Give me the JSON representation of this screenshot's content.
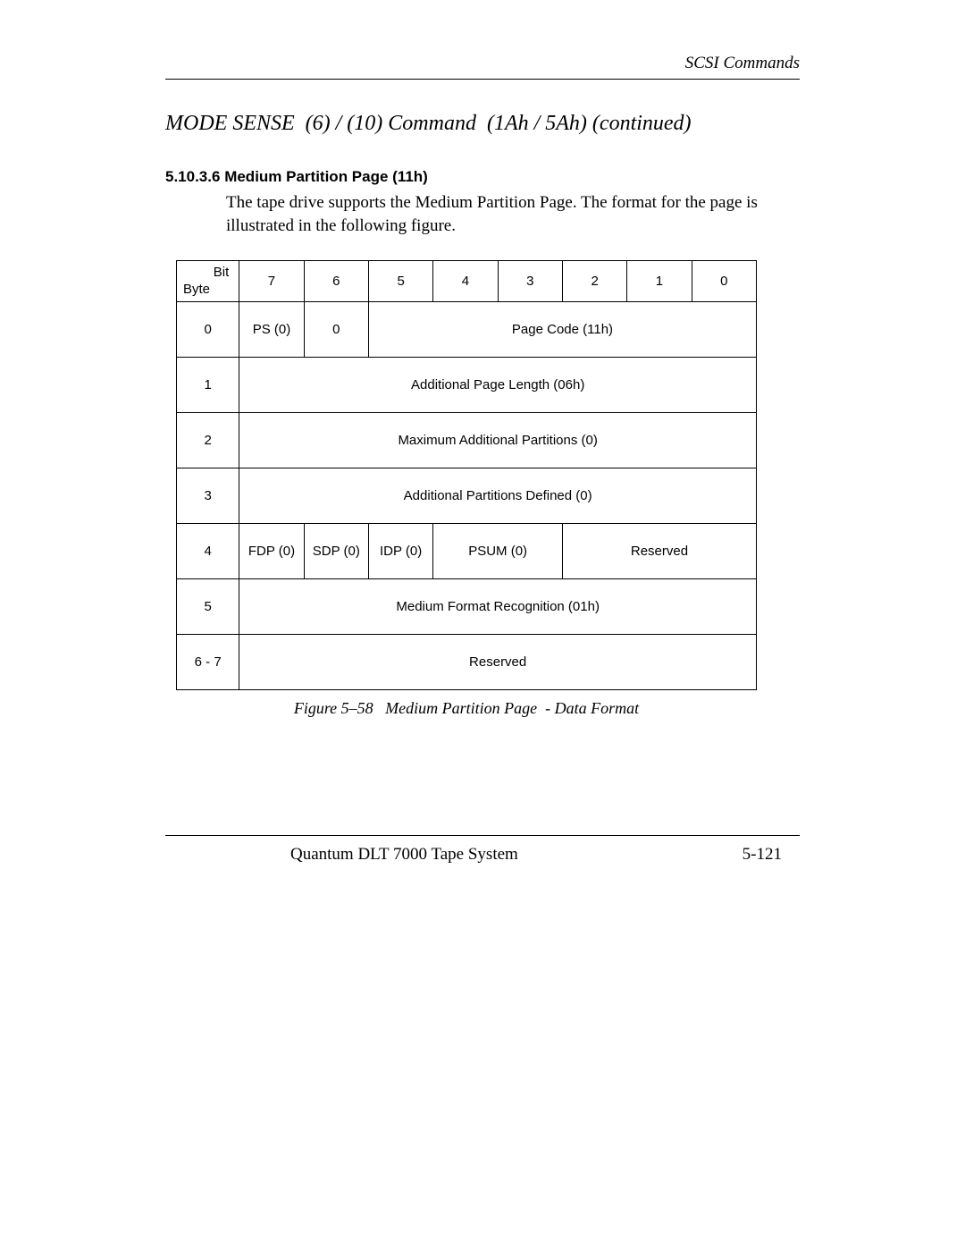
{
  "running_head": "SCSI Commands",
  "title": "MODE SENSE  (6) / (10) Command  (1Ah / 5Ah) (continued)",
  "subsection_number": "5.10.3.6",
  "subsection_title": "Medium Partition Page (11h)",
  "body_text": "The tape drive supports the Medium Partition Page. The format for the page is illustrated in the following figure.",
  "table": {
    "corner_top": "Bit",
    "corner_bottom": "Byte",
    "bit_headers": [
      "7",
      "6",
      "5",
      "4",
      "3",
      "2",
      "1",
      "0"
    ],
    "rows": [
      {
        "byte": "0",
        "cells": [
          {
            "span": 1,
            "text": "PS (0)"
          },
          {
            "span": 1,
            "text": "0"
          },
          {
            "span": 6,
            "text": "Page Code (11h)"
          }
        ]
      },
      {
        "byte": "1",
        "cells": [
          {
            "span": 8,
            "text": "Additional Page Length (06h)"
          }
        ]
      },
      {
        "byte": "2",
        "cells": [
          {
            "span": 8,
            "text": "Maximum Additional Partitions (0)"
          }
        ]
      },
      {
        "byte": "3",
        "cells": [
          {
            "span": 8,
            "text": "Additional Partitions Defined (0)"
          }
        ]
      },
      {
        "byte": "4",
        "cells": [
          {
            "span": 1,
            "text": "FDP (0)"
          },
          {
            "span": 1,
            "text": "SDP (0)"
          },
          {
            "span": 1,
            "text": "IDP (0)"
          },
          {
            "span": 2,
            "text": "PSUM (0)"
          },
          {
            "span": 3,
            "text": "Reserved"
          }
        ]
      },
      {
        "byte": "5",
        "cells": [
          {
            "span": 8,
            "text": "Medium Format Recognition (01h)"
          }
        ]
      },
      {
        "byte": "6 - 7",
        "cells": [
          {
            "span": 8,
            "text": "Reserved"
          }
        ]
      }
    ]
  },
  "caption": "Figure 5–58   Medium Partition Page  - Data Format",
  "footer_center": "Quantum DLT 7000 Tape System",
  "footer_page": "5-121"
}
